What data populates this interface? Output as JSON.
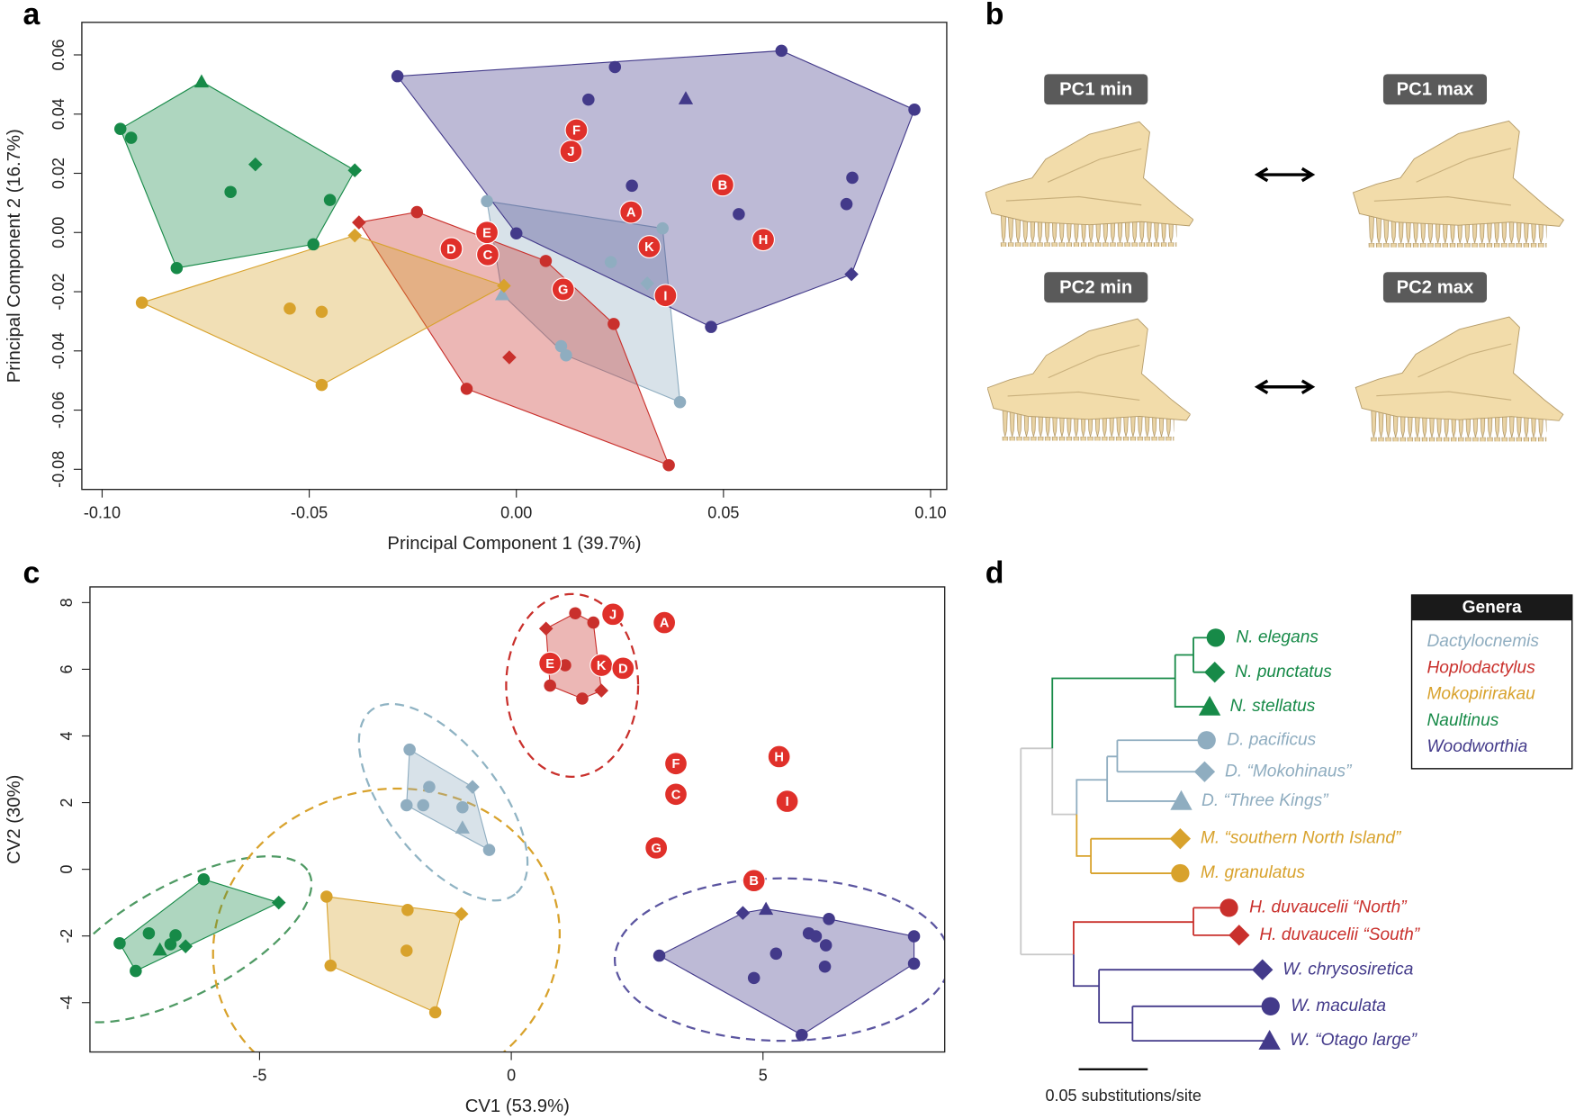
{
  "panel_labels": [
    "a",
    "b",
    "c",
    "d"
  ],
  "chart_data": [
    {
      "type": "scatter",
      "x_label": "Principal Component 1 (39.7%)",
      "y_label": "Principal Component 2 (16.7%)",
      "xlim": [
        -0.1049,
        0.1039
      ],
      "ylim": [
        -0.0868,
        0.071
      ],
      "xticks": [
        {
          "value": -0.1,
          "label": "-0.10"
        },
        -0.05,
        {
          "value": 0,
          "label": "0.00"
        },
        0.05,
        {
          "value": 0.1,
          "label": "0.10"
        }
      ],
      "yticks": [
        -0.08,
        -0.06,
        -0.04,
        -0.02,
        {
          "value": 0,
          "label": "0.00"
        },
        0.02,
        0.04,
        0.06
      ],
      "hulls": true,
      "series": [
        {
          "color": "#8fadc0",
          "x": [
            -0.0071,
            0.0353,
            0.0228,
            0.0108,
            0.012,
            0.0395,
            0.0316,
            -0.0034
          ],
          "y": [
            0.0106,
            0.0014,
            -0.01,
            -0.0384,
            -0.0415,
            -0.0573,
            -0.0172,
            -0.0209
          ],
          "markers": [
            "circle",
            "circle",
            "circle",
            "circle",
            "circle",
            "circle",
            "diamond",
            "triangle"
          ]
        },
        {
          "color": "#c9302c",
          "x": [
            -0.024,
            0.0071,
            0.0235,
            -0.012,
            0.0368,
            -0.038,
            -0.0017
          ],
          "y": [
            0.0069,
            -0.0096,
            -0.0309,
            -0.0528,
            -0.0786,
            0.0034,
            -0.0422
          ],
          "markers": [
            "circle",
            "circle",
            "circle",
            "circle",
            "circle",
            "diamond",
            "diamond"
          ]
        },
        {
          "color": "#d8a22c",
          "x": [
            -0.0547,
            -0.047,
            -0.047,
            -0.0904,
            -0.039,
            -0.003
          ],
          "y": [
            -0.0257,
            -0.0268,
            -0.0515,
            -0.0237,
            -0.001,
            -0.018
          ],
          "markers": [
            "circle",
            "circle",
            "circle",
            "circle",
            "diamond",
            "diamond"
          ]
        },
        {
          "color": "#178a48",
          "x": [
            -0.0956,
            -0.093,
            -0.069,
            -0.045,
            -0.049,
            -0.082,
            -0.063,
            -0.039,
            -0.076
          ],
          "y": [
            0.035,
            0.032,
            0.0137,
            0.011,
            -0.004,
            -0.012,
            0.023,
            0.021,
            0.051
          ],
          "markers": [
            "circle",
            "circle",
            "circle",
            "circle",
            "circle",
            "circle",
            "diamond",
            "diamond",
            "triangle"
          ]
        },
        {
          "color": "#433a8a",
          "x": [
            -0.0287,
            0.0238,
            0.064,
            0.0961,
            0.0174,
            0.0279,
            0.0,
            0.0537,
            0.0811,
            0.0797,
            0.047,
            0.0809,
            0.0409
          ],
          "y": [
            0.0528,
            0.0559,
            0.0614,
            0.0415,
            0.0449,
            0.0158,
            -0.0003,
            0.0062,
            0.0185,
            0.0096,
            -0.0319,
            -0.0141,
            0.0453
          ],
          "markers": [
            "circle",
            "circle",
            "circle",
            "circle",
            "circle",
            "circle",
            "circle",
            "circle",
            "circle",
            "circle",
            "circle",
            "diamond",
            "triangle"
          ]
        }
      ],
      "labeled_points": {
        "color": "#e0302a",
        "labels": [
          "F",
          "J",
          "A",
          "E",
          "D",
          "C",
          "K",
          "G",
          "I",
          "B",
          "H"
        ],
        "x": [
          0.0145,
          0.0132,
          0.0277,
          -0.0071,
          -0.0157,
          -0.0069,
          0.0321,
          0.0113,
          0.036,
          0.0498,
          0.0596
        ],
        "y": [
          0.0346,
          0.0274,
          0.0069,
          0.0,
          -0.0055,
          -0.0075,
          -0.0048,
          -0.0192,
          -0.0213,
          0.0161,
          -0.0024
        ]
      }
    },
    {
      "type": "scatter",
      "x_label": "CV1 (53.9%)",
      "y_label": "CV2 (30%)",
      "xlim": [
        -8.37,
        8.61
      ],
      "ylim": [
        -5.48,
        8.47
      ],
      "xticks": [
        -5,
        0,
        5
      ],
      "yticks": [
        -4,
        -2,
        0,
        2,
        4,
        6,
        8
      ],
      "hulls": true,
      "series": [
        {
          "color": "#8fadc0",
          "x": [
            -2.02,
            -1.63,
            -2.08,
            -1.75,
            -0.97,
            -0.44,
            -0.77,
            -0.97
          ],
          "y": [
            3.59,
            2.47,
            1.92,
            1.92,
            1.86,
            0.58,
            2.47,
            1.25
          ],
          "markers": [
            "circle",
            "circle",
            "circle",
            "circle",
            "circle",
            "circle",
            "diamond",
            "triangle"
          ]
        },
        {
          "color": "#c9302c",
          "x": [
            1.27,
            1.63,
            1.07,
            0.77,
            1.41,
            0.69,
            1.79
          ],
          "y": [
            7.68,
            7.4,
            6.12,
            5.51,
            5.12,
            7.22,
            5.36
          ],
          "markers": [
            "circle",
            "circle",
            "circle",
            "circle",
            "circle",
            "diamond",
            "diamond"
          ]
        },
        {
          "color": "#d8a22c",
          "x": [
            -3.67,
            -2.06,
            -2.08,
            -3.59,
            -1.51,
            -0.99
          ],
          "y": [
            -0.82,
            -1.22,
            -2.44,
            -2.89,
            -4.29,
            -1.34
          ],
          "markers": [
            "circle",
            "circle",
            "circle",
            "circle",
            "circle",
            "diamond"
          ]
        },
        {
          "color": "#178a48",
          "x": [
            -6.11,
            -7.2,
            -7.78,
            -6.67,
            -6.77,
            -7.46,
            -4.62,
            -6.47,
            -6.98
          ],
          "y": [
            -0.3,
            -1.92,
            -2.22,
            -1.98,
            -2.25,
            -3.05,
            -1.0,
            -2.31,
            -2.41
          ],
          "markers": [
            "circle",
            "circle",
            "circle",
            "circle",
            "circle",
            "circle",
            "diamond",
            "diamond",
            "triangle"
          ]
        },
        {
          "color": "#433a8a",
          "x": [
            2.94,
            4.82,
            5.26,
            5.91,
            6.05,
            6.31,
            6.25,
            6.23,
            8.0,
            8.0,
            5.77,
            4.6,
            5.06
          ],
          "y": [
            -2.59,
            -3.26,
            -2.53,
            -1.92,
            -2.01,
            -1.49,
            -2.28,
            -2.92,
            -2.01,
            -2.83,
            -4.97,
            -1.31,
            -1.19
          ],
          "markers": [
            "circle",
            "circle",
            "circle",
            "circle",
            "circle",
            "circle",
            "circle",
            "circle",
            "circle",
            "circle",
            "circle",
            "diamond",
            "triangle"
          ]
        }
      ],
      "labeled_points": {
        "color": "#e0302a",
        "labels": [
          "J",
          "A",
          "E",
          "K",
          "D",
          "F",
          "H",
          "C",
          "I",
          "G",
          "B"
        ],
        "x": [
          2.02,
          3.04,
          0.77,
          1.79,
          2.22,
          3.27,
          5.32,
          3.27,
          5.48,
          2.88,
          4.82
        ],
        "y": [
          7.65,
          7.4,
          6.18,
          6.12,
          6.03,
          3.17,
          3.38,
          2.25,
          2.04,
          0.64,
          -0.34
        ]
      }
    }
  ],
  "panel_b": {
    "labels": [
      "PC1 min",
      "PC1 max",
      "PC2 min",
      "PC2 max"
    ]
  },
  "tree": {
    "tips": [
      {
        "label": "N. elegans",
        "color": "#178a48",
        "marker": "circle"
      },
      {
        "label": "N. punctatus",
        "color": "#178a48",
        "marker": "diamond"
      },
      {
        "label": "N. stellatus",
        "color": "#178a48",
        "marker": "triangle"
      },
      {
        "label": "D. pacificus",
        "color": "#8fadc0",
        "marker": "circle"
      },
      {
        "label": "D. “Mokohinaus”",
        "color": "#8fadc0",
        "marker": "diamond"
      },
      {
        "label": "D. “Three Kings”",
        "color": "#8fadc0",
        "marker": "triangle"
      },
      {
        "label": "M. “southern North Island”",
        "color": "#d8a22c",
        "marker": "diamond"
      },
      {
        "label": "M. granulatus",
        "color": "#d8a22c",
        "marker": "circle"
      },
      {
        "label": "H. duvaucelii “North”",
        "color": "#c9302c",
        "marker": "circle"
      },
      {
        "label": "H. duvaucelii “South”",
        "color": "#c9302c",
        "marker": "diamond"
      },
      {
        "label": "W. chrysosiretica",
        "color": "#433a8a",
        "marker": "diamond"
      },
      {
        "label": "W. maculata",
        "color": "#433a8a",
        "marker": "circle"
      },
      {
        "label": "W. “Otago large”",
        "color": "#433a8a",
        "marker": "triangle"
      }
    ],
    "scale_label": "0.05 substitutions/site",
    "legend": {
      "title": "Genera",
      "items": [
        {
          "name": "Dactylocnemis",
          "color": "#8fadc0"
        },
        {
          "name": "Hoplodactylus",
          "color": "#c9302c"
        },
        {
          "name": "Mokopirirakau",
          "color": "#d8a22c"
        },
        {
          "name": "Naultinus",
          "color": "#178a48"
        },
        {
          "name": "Woodworthia",
          "color": "#433a8a"
        }
      ]
    }
  }
}
